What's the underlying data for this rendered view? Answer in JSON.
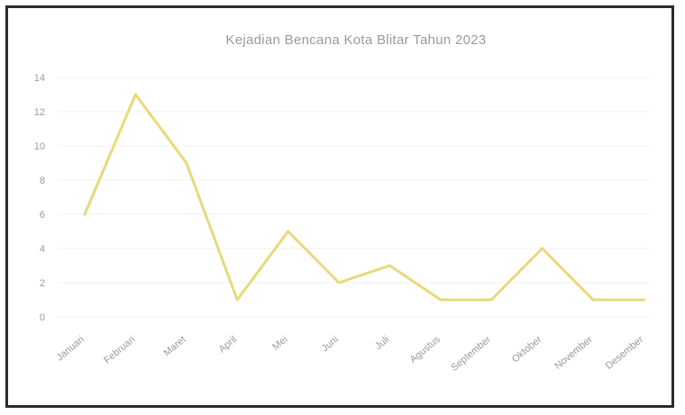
{
  "chart_data": {
    "type": "line",
    "title": "Kejadian Bencana Kota Blitar Tahun 2023",
    "xlabel": "",
    "ylabel": "",
    "categories": [
      "Januari",
      "Februari",
      "Maret",
      "April",
      "Mei",
      "Juni",
      "Juli",
      "Agustus",
      "September",
      "Oktober",
      "November",
      "Desember"
    ],
    "series": [
      {
        "values": [
          6,
          13,
          9,
          1,
          5,
          2,
          3,
          1,
          1,
          4,
          1,
          1
        ]
      }
    ],
    "y_ticks": [
      0,
      2,
      4,
      6,
      8,
      10,
      12,
      14
    ],
    "ylim": [
      0,
      14
    ],
    "grid": true,
    "line_color": "#e8d97a"
  }
}
